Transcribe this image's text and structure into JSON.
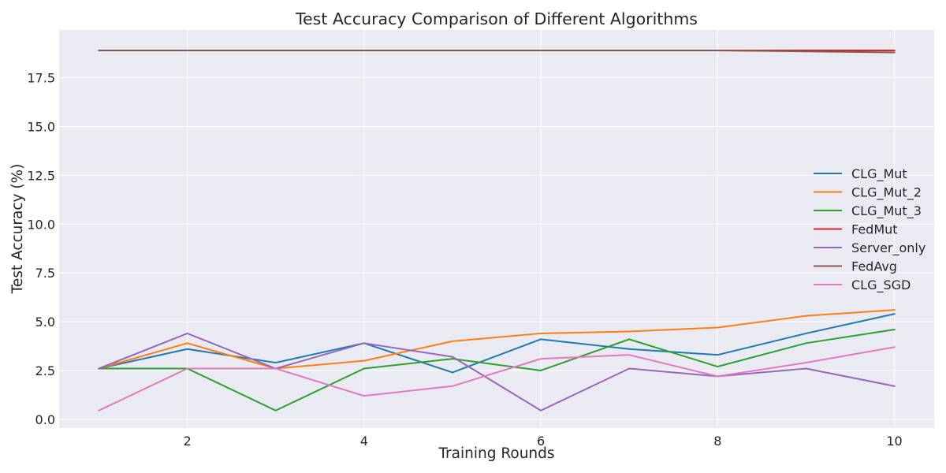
{
  "chart_data": {
    "type": "line",
    "title": "Test Accuracy Comparison of Different Algorithms",
    "xlabel": "Training Rounds",
    "ylabel": "Test Accuracy (%)",
    "xlim": [
      0.55,
      10.45
    ],
    "ylim": [
      -0.45,
      19.95
    ],
    "xticks": [
      2,
      4,
      6,
      8,
      10
    ],
    "yticks": [
      0.0,
      2.5,
      5.0,
      7.5,
      10.0,
      12.5,
      15.0,
      17.5
    ],
    "ytick_labels": [
      "0.0",
      "2.5",
      "5.0",
      "7.5",
      "10.0",
      "12.5",
      "15.0",
      "17.5"
    ],
    "xtick_labels": [
      "2",
      "4",
      "6",
      "8",
      "10"
    ],
    "grid": true,
    "legend_position": "center-right",
    "x": [
      1,
      2,
      3,
      4,
      5,
      6,
      7,
      8,
      9,
      10
    ],
    "series": [
      {
        "name": "CLG_Mut",
        "color": "#1f77b4",
        "values": [
          2.6,
          3.6,
          2.9,
          3.9,
          2.4,
          4.1,
          3.6,
          3.3,
          4.4,
          5.4
        ]
      },
      {
        "name": "CLG_Mut_2",
        "color": "#ff7f0e",
        "values": [
          2.6,
          3.9,
          2.6,
          3.0,
          4.0,
          4.4,
          4.5,
          4.7,
          5.3,
          5.6
        ]
      },
      {
        "name": "CLG_Mut_3",
        "color": "#2ca02c",
        "values": [
          2.6,
          2.6,
          0.45,
          2.6,
          3.1,
          2.5,
          4.1,
          2.7,
          3.9,
          4.6
        ]
      },
      {
        "name": "FedMut",
        "color": "#d62728",
        "values": [
          18.9,
          18.9,
          18.9,
          18.9,
          18.9,
          18.9,
          18.9,
          18.9,
          18.9,
          18.9
        ]
      },
      {
        "name": "Server_only",
        "color": "#9467bd",
        "values": [
          2.6,
          4.4,
          2.6,
          3.9,
          3.2,
          0.45,
          2.6,
          2.2,
          2.6,
          1.7
        ]
      },
      {
        "name": "FedAvg",
        "color": "#8c564b",
        "values": [
          18.9,
          18.9,
          18.9,
          18.9,
          18.9,
          18.9,
          18.9,
          18.9,
          18.85,
          18.8
        ]
      },
      {
        "name": "CLG_SGD",
        "color": "#e377c2",
        "values": [
          0.45,
          2.6,
          2.6,
          1.2,
          1.7,
          3.1,
          3.3,
          2.2,
          2.9,
          3.7
        ]
      }
    ]
  }
}
